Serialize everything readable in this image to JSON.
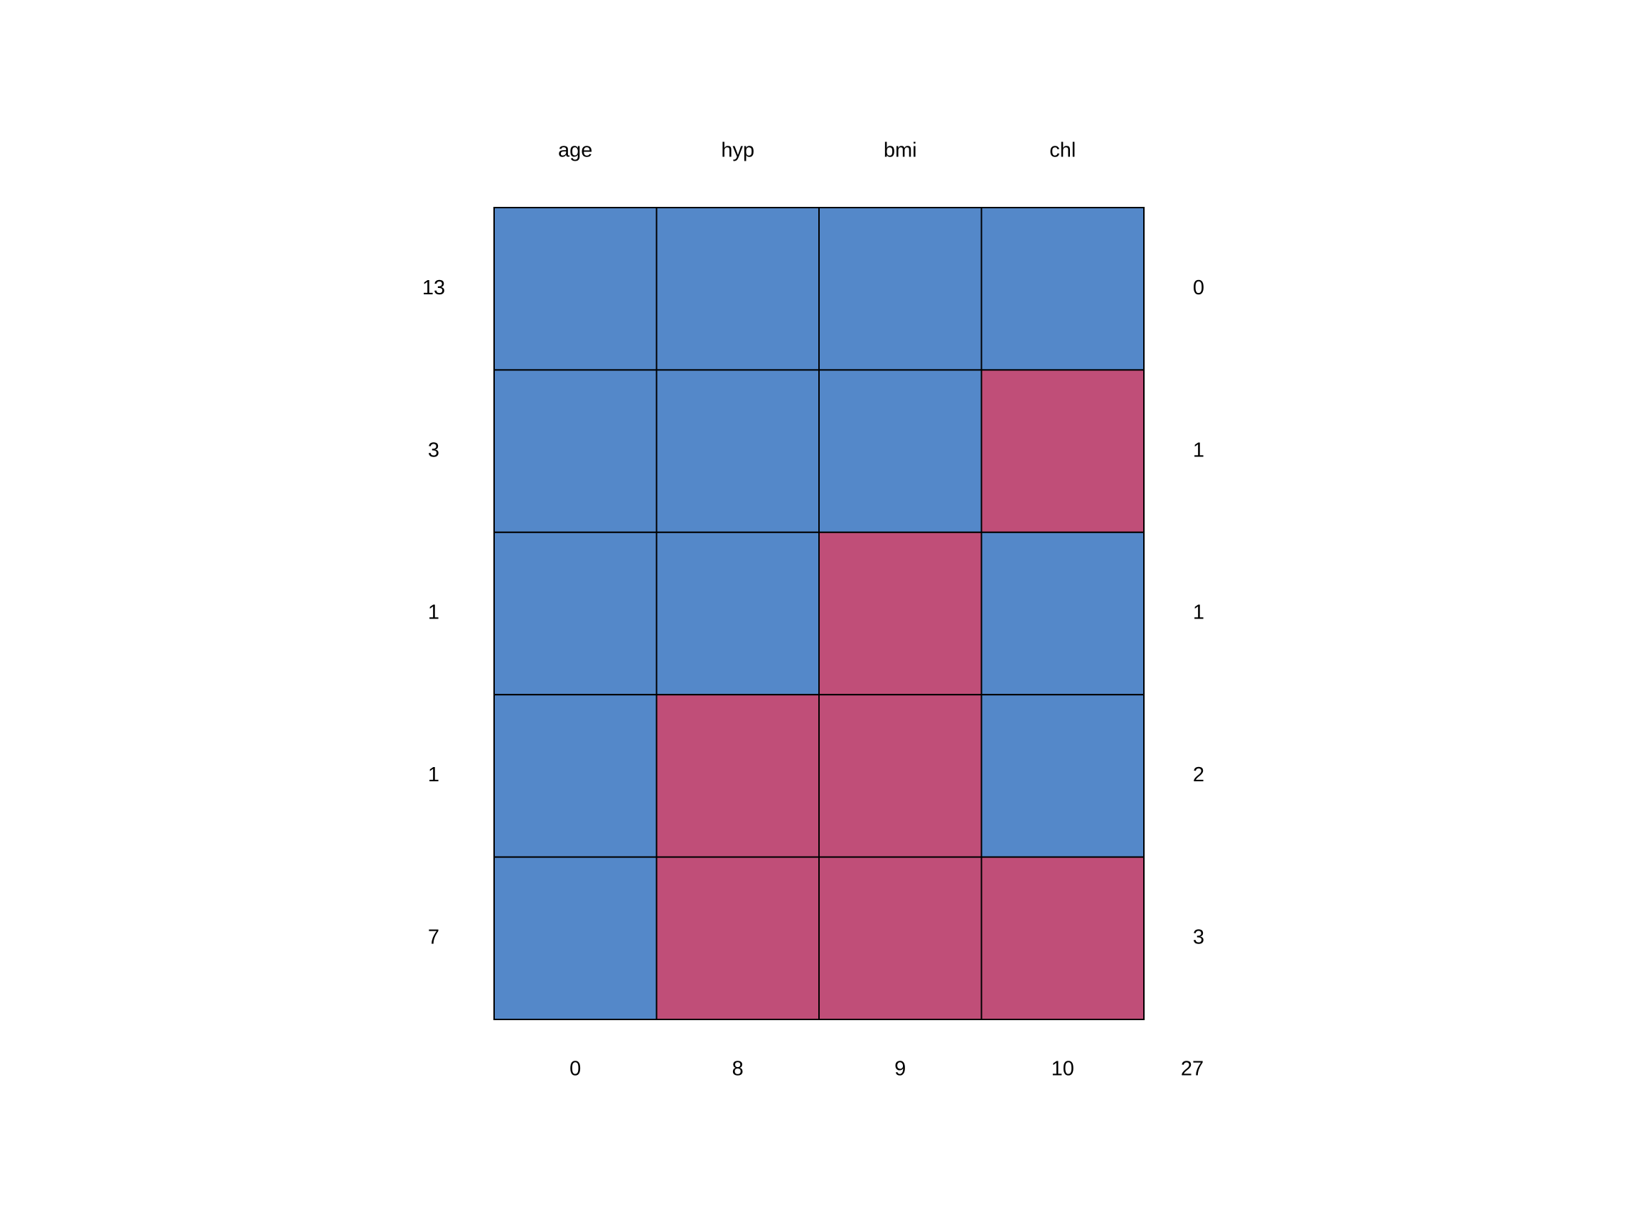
{
  "chart_data": {
    "type": "missing-pattern",
    "columns": [
      "age",
      "hyp",
      "bmi",
      "chl"
    ],
    "row_counts": [
      13,
      3,
      1,
      1,
      7
    ],
    "row_missing": [
      0,
      1,
      1,
      2,
      3
    ],
    "column_missing": [
      0,
      8,
      9,
      10
    ],
    "total_missing": 27,
    "pattern": [
      [
        1,
        1,
        1,
        1
      ],
      [
        1,
        1,
        1,
        0
      ],
      [
        1,
        1,
        0,
        1
      ],
      [
        1,
        0,
        0,
        1
      ],
      [
        1,
        0,
        0,
        0
      ]
    ],
    "colors": {
      "observed": "#5488c9",
      "missing": "#c04e78"
    }
  }
}
